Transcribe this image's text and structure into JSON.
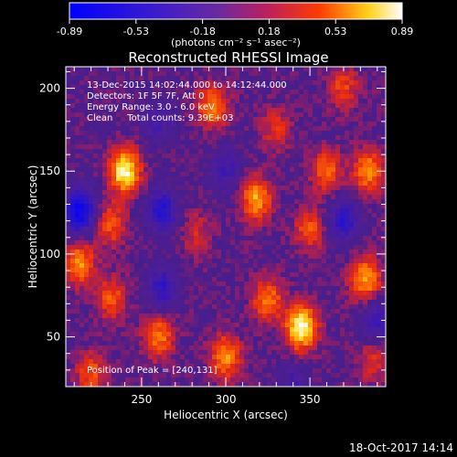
{
  "colorbar": {
    "ticks": [
      "-0.89",
      "-0.53",
      "-0.18",
      "0.18",
      "0.53",
      "0.89"
    ],
    "unit_label": "(photons cm⁻² s⁻¹ asec⁻²)",
    "range": [
      -0.89,
      0.89
    ]
  },
  "chart_data": {
    "type": "heatmap",
    "title": "Reconstructed RHESSI Image",
    "xlabel": "Heliocentric X (arcsec)",
    "ylabel": "Heliocentric Y (arcsec)",
    "xlim": [
      205,
      395
    ],
    "ylim": [
      20,
      213
    ],
    "xticks": [
      250,
      300,
      350
    ],
    "yticks": [
      50,
      100,
      150,
      200
    ],
    "colormap": "blue-purple-red-yellow-white",
    "info_lines": [
      "13-Dec-2015 14:02:44.000 to 14:12:44.000",
      "Detectors: 1F 5F 7F, Att 0",
      "Energy Range: 3.0 - 6.0 keV",
      "Clean     Total counts: 9.39E+03"
    ],
    "peak_label": "Position of Peak = [240,131]",
    "peak": [
      240,
      131
    ],
    "sources": [
      {
        "x": 240,
        "y": 150,
        "value": 0.85
      },
      {
        "x": 213,
        "y": 94,
        "value": 0.55
      },
      {
        "x": 232,
        "y": 73,
        "value": 0.4
      },
      {
        "x": 232,
        "y": 118,
        "value": 0.4
      },
      {
        "x": 292,
        "y": 189,
        "value": 0.5
      },
      {
        "x": 318,
        "y": 133,
        "value": 0.6
      },
      {
        "x": 283,
        "y": 112,
        "value": 0.25
      },
      {
        "x": 345,
        "y": 56,
        "value": 0.89
      },
      {
        "x": 325,
        "y": 72,
        "value": 0.5
      },
      {
        "x": 383,
        "y": 85,
        "value": 0.6
      },
      {
        "x": 360,
        "y": 150,
        "value": 0.45
      },
      {
        "x": 385,
        "y": 150,
        "value": 0.55
      },
      {
        "x": 350,
        "y": 115,
        "value": 0.4
      },
      {
        "x": 260,
        "y": 50,
        "value": 0.5
      },
      {
        "x": 220,
        "y": 28,
        "value": 0.4
      },
      {
        "x": 300,
        "y": 38,
        "value": 0.55
      },
      {
        "x": 370,
        "y": 200,
        "value": 0.35
      },
      {
        "x": 330,
        "y": 175,
        "value": 0.3
      },
      {
        "x": 388,
        "y": 35,
        "value": 0.3
      },
      {
        "x": 213,
        "y": 126,
        "value": -0.8
      },
      {
        "x": 262,
        "y": 126,
        "value": -0.55
      },
      {
        "x": 262,
        "y": 80,
        "value": -0.45
      },
      {
        "x": 300,
        "y": 150,
        "value": -0.35
      },
      {
        "x": 370,
        "y": 120,
        "value": -0.5
      },
      {
        "x": 260,
        "y": 180,
        "value": -0.3
      },
      {
        "x": 390,
        "y": 60,
        "value": -0.4
      },
      {
        "x": 340,
        "y": 20,
        "value": -0.3
      }
    ]
  },
  "footer": {
    "date": "18-Oct-2017 14:14"
  }
}
